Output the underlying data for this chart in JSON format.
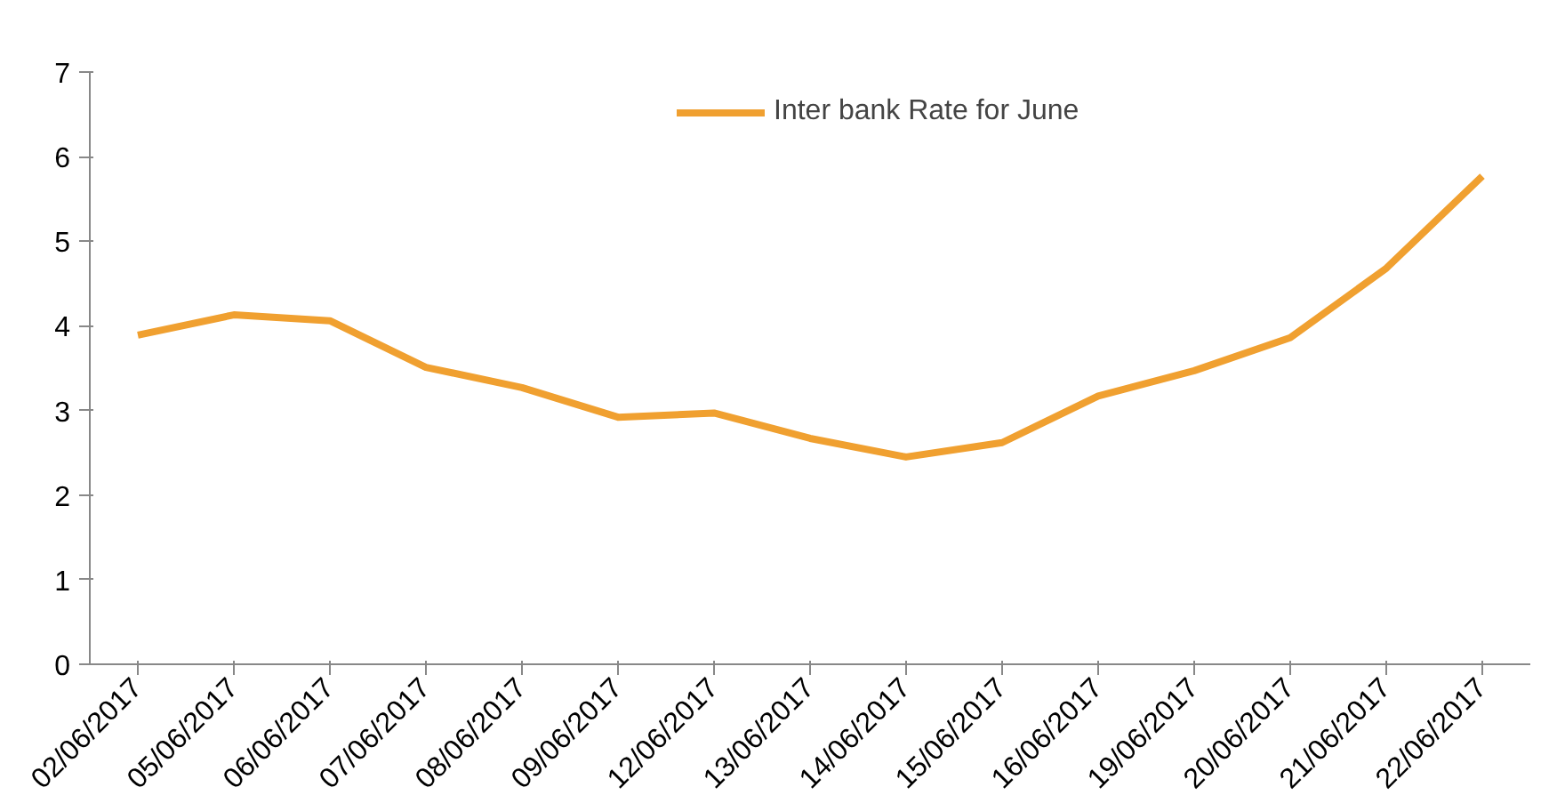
{
  "chart_data": {
    "type": "line",
    "categories": [
      "02/06/2017",
      "05/06/2017",
      "06/06/2017",
      "07/06/2017",
      "08/06/2017",
      "09/06/2017",
      "12/06/2017",
      "13/06/2017",
      "14/06/2017",
      "15/06/2017",
      "16/06/2017",
      "19/06/2017",
      "20/06/2017",
      "21/06/2017",
      "22/06/2017"
    ],
    "series": [
      {
        "name": "Inter bank Rate for June",
        "color": "#f0a030",
        "values": [
          3.89,
          4.13,
          4.06,
          3.51,
          3.27,
          2.92,
          2.97,
          2.67,
          2.45,
          2.62,
          3.17,
          3.47,
          3.86,
          4.68,
          5.77
        ]
      }
    ],
    "ylim": [
      0,
      7
    ],
    "yticks": [
      0,
      1,
      2,
      3,
      4,
      5,
      6,
      7
    ],
    "grid": false,
    "legend": "top",
    "marker": "none",
    "line_style": "solid"
  }
}
